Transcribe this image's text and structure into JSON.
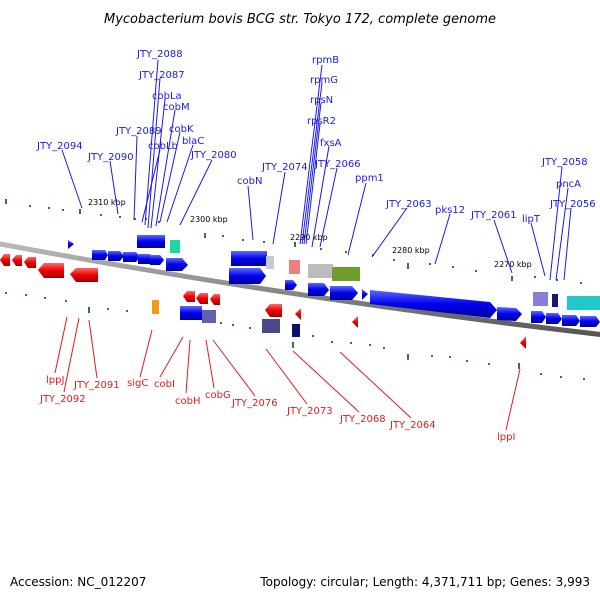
{
  "title": "Mycobacterium bovis BCG str. Tokyo 172, complete genome",
  "footer": {
    "accession": "Accession: NC_012207",
    "summary": "Topology: circular; Length: 4,371,711 bp; Genes: 3,993"
  },
  "colors": {
    "forward": "#1a1ae6",
    "reverse": "#e61a1a",
    "backbone": "#808080",
    "tick": "#2e7d32"
  },
  "scale_labels": [
    "2310 kbp",
    "2300 kbp",
    "2290 kbp",
    "2280 kbp",
    "2270 kbp"
  ],
  "forward_labels": [
    "JTY_2088",
    "JTY_2087",
    "cobLa",
    "cobM",
    "JTY_2089",
    "cobK",
    "cobLb",
    "blaC",
    "JTY_2094",
    "JTY_2090",
    "JTY_2080",
    "cobN",
    "JTY_2074",
    "rpmB",
    "rpmG",
    "rpsN",
    "rpsR2",
    "fxsA",
    "JTY_2066",
    "ppm1",
    "JTY_2063",
    "pks12",
    "JTY_2061",
    "lipT",
    "JTY_2058",
    "pncA",
    "JTY_2056"
  ],
  "reverse_labels": [
    "lppJ",
    "JTY_2092",
    "JTY_2091",
    "sigC",
    "cobI",
    "cobH",
    "cobG",
    "JTY_2076",
    "JTY_2073",
    "JTY_2068",
    "JTY_2064",
    "lppI"
  ]
}
